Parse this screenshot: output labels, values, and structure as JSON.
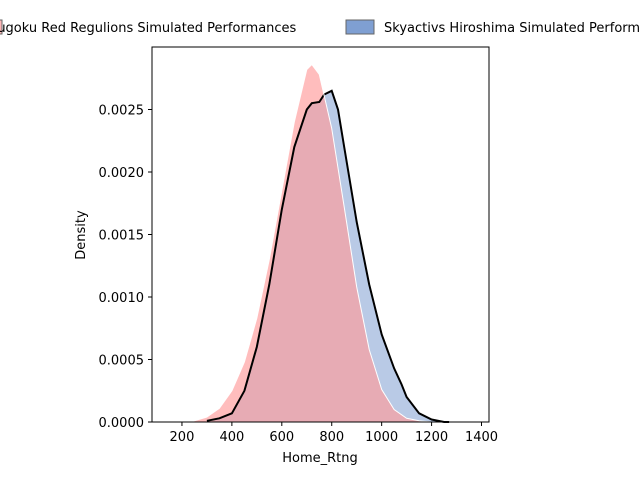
{
  "chart_data": {
    "type": "area",
    "xlabel": "Home_Rtng",
    "ylabel": "Density",
    "xlim": [
      80,
      1430
    ],
    "ylim": [
      0,
      0.003
    ],
    "x_ticks": [
      200,
      400,
      600,
      800,
      1000,
      1200,
      1400
    ],
    "x_tick_labels": [
      "200",
      "400",
      "600",
      "800",
      "1000",
      "1200",
      "1400"
    ],
    "y_ticks": [
      0.0,
      0.0005,
      0.001,
      0.0015,
      0.002,
      0.0025
    ],
    "y_tick_labels": [
      "0.0000",
      "0.0005",
      "0.0010",
      "0.0015",
      "0.0020",
      "0.0025"
    ],
    "grid": false,
    "legend_position": "top-center",
    "series": [
      {
        "name": "Chugoku Red Regulions Simulated Performances",
        "color": "#ff9999",
        "x": [
          250,
          300,
          350,
          400,
          450,
          500,
          550,
          600,
          650,
          700,
          720,
          750,
          800,
          850,
          900,
          950,
          1000,
          1050,
          1100,
          1150,
          1200
        ],
        "values": [
          1e-05,
          4e-05,
          0.00011,
          0.00025,
          0.00048,
          0.00083,
          0.0013,
          0.00185,
          0.0024,
          0.00282,
          0.00286,
          0.00278,
          0.00235,
          0.00172,
          0.00108,
          0.00058,
          0.00026,
          0.0001,
          3e-05,
          1e-05,
          0.0
        ]
      },
      {
        "name": "Skyactivs Hiroshima Simulated Performances",
        "color": "#7f9fd2",
        "x": [
          300,
          350,
          400,
          450,
          500,
          550,
          600,
          650,
          700,
          720,
          750,
          770,
          800,
          825,
          850,
          900,
          950,
          1000,
          1050,
          1080,
          1100,
          1150,
          1200,
          1250,
          1270
        ],
        "values": [
          1e-05,
          3e-05,
          7e-05,
          0.00025,
          0.0006,
          0.0011,
          0.0017,
          0.0022,
          0.0025,
          0.00255,
          0.00256,
          0.00262,
          0.00265,
          0.0025,
          0.0022,
          0.0016,
          0.0011,
          0.0007,
          0.00043,
          0.0003,
          0.0002,
          7e-05,
          2e-05,
          0.0,
          0.0
        ]
      }
    ]
  }
}
